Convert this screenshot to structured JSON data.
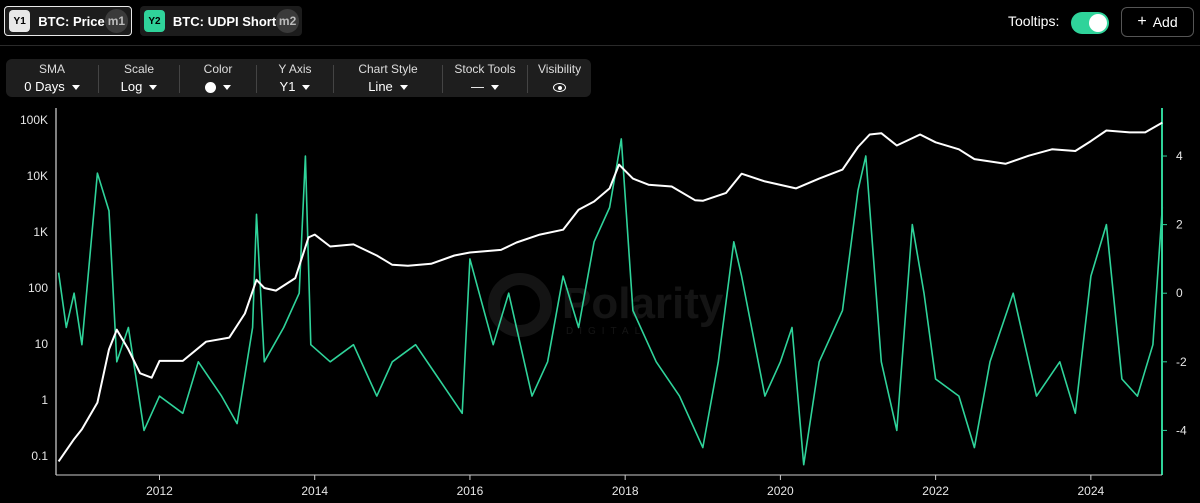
{
  "header": {
    "series": [
      {
        "badge": "Y1",
        "label": "BTC: Price",
        "tag": "m1"
      },
      {
        "badge": "Y2",
        "label": "BTC: UDPI Short",
        "tag": "m2"
      }
    ],
    "tooltips_label": "Tooltips:",
    "tooltips_enabled": true,
    "add_label": "Add"
  },
  "toolbar": {
    "sma": {
      "title": "SMA",
      "value": "0 Days"
    },
    "scale": {
      "title": "Scale",
      "value": "Log"
    },
    "color": {
      "title": "Color",
      "value": "#ffffff"
    },
    "y_axis": {
      "title": "Y Axis",
      "value": "Y1"
    },
    "chart_style": {
      "title": "Chart Style",
      "value": "Line"
    },
    "stock_tools": {
      "title": "Stock Tools",
      "value": "—"
    },
    "visibility": {
      "title": "Visibility",
      "icon": "eye-icon"
    }
  },
  "watermark": {
    "text": "Polarity",
    "sub": "DIGITAL"
  },
  "chart_data": {
    "type": "line",
    "x_ticks": [
      "2012",
      "2014",
      "2016",
      "2018",
      "2020",
      "2022",
      "2024"
    ],
    "xlim": [
      "2010-09",
      "2024-12"
    ],
    "y1": {
      "scale": "log",
      "ticks": [
        "0.1",
        "1",
        "10",
        "100",
        "1K",
        "10K",
        "100K"
      ],
      "ylim": [
        0.06,
        100000
      ]
    },
    "y2": {
      "scale": "linear",
      "ticks": [
        "-4",
        "-2",
        "0",
        "2",
        "4"
      ],
      "ylim": [
        -5.3,
        5.4
      ]
    },
    "series": [
      {
        "name": "BTC: Price",
        "axis": "y1",
        "color": "#ffffff",
        "x": [
          2010.7,
          2010.9,
          2011.0,
          2011.2,
          2011.35,
          2011.45,
          2011.6,
          2011.75,
          2011.9,
          2012.0,
          2012.3,
          2012.6,
          2012.9,
          2013.1,
          2013.25,
          2013.35,
          2013.5,
          2013.75,
          2013.92,
          2014.0,
          2014.2,
          2014.5,
          2014.8,
          2015.0,
          2015.2,
          2015.5,
          2015.8,
          2016.0,
          2016.4,
          2016.6,
          2016.9,
          2017.2,
          2017.4,
          2017.6,
          2017.8,
          2017.92,
          2018.1,
          2018.3,
          2018.6,
          2018.9,
          2019.0,
          2019.3,
          2019.5,
          2019.8,
          2020.2,
          2020.5,
          2020.8,
          2021.0,
          2021.15,
          2021.3,
          2021.5,
          2021.8,
          2022.0,
          2022.3,
          2022.5,
          2022.9,
          2023.2,
          2023.5,
          2023.8,
          2024.0,
          2024.2,
          2024.5,
          2024.7,
          2024.92
        ],
        "y": [
          0.08,
          0.2,
          0.3,
          0.9,
          8,
          18,
          8,
          3,
          2.5,
          5,
          5,
          11,
          13,
          35,
          140,
          100,
          90,
          150,
          800,
          900,
          550,
          600,
          380,
          260,
          250,
          270,
          380,
          430,
          480,
          650,
          900,
          1100,
          2500,
          3500,
          6000,
          16000,
          9000,
          7000,
          6500,
          3700,
          3600,
          5000,
          11000,
          8000,
          6000,
          9000,
          13000,
          33000,
          55000,
          58000,
          35000,
          55000,
          40000,
          30000,
          20000,
          16500,
          23000,
          30000,
          28000,
          42000,
          65000,
          60000,
          60000,
          90000
        ]
      },
      {
        "name": "BTC: UDPI Short",
        "axis": "y2",
        "color": "#2fd39a",
        "x": [
          2010.7,
          2010.8,
          2010.9,
          2011.0,
          2011.2,
          2011.35,
          2011.45,
          2011.6,
          2011.8,
          2012.0,
          2012.3,
          2012.5,
          2012.8,
          2013.0,
          2013.2,
          2013.25,
          2013.35,
          2013.6,
          2013.8,
          2013.88,
          2013.95,
          2014.2,
          2014.5,
          2014.8,
          2015.0,
          2015.3,
          2015.6,
          2015.9,
          2016.0,
          2016.3,
          2016.5,
          2016.8,
          2017.0,
          2017.2,
          2017.4,
          2017.6,
          2017.8,
          2017.95,
          2018.1,
          2018.4,
          2018.7,
          2019.0,
          2019.2,
          2019.4,
          2019.5,
          2019.8,
          2020.0,
          2020.15,
          2020.3,
          2020.5,
          2020.8,
          2021.0,
          2021.1,
          2021.3,
          2021.5,
          2021.7,
          2021.85,
          2022.0,
          2022.3,
          2022.5,
          2022.7,
          2023.0,
          2023.3,
          2023.6,
          2023.8,
          2024.0,
          2024.2,
          2024.4,
          2024.6,
          2024.8,
          2024.92
        ],
        "y": [
          0.6,
          -1.0,
          0,
          -1.5,
          3.5,
          2.4,
          -2.0,
          -1.0,
          -4.0,
          -3.0,
          -3.5,
          -2.0,
          -3.0,
          -3.8,
          -1.0,
          2.3,
          -2.0,
          -1.0,
          0,
          4.0,
          -1.5,
          -2.0,
          -1.5,
          -3.0,
          -2.0,
          -1.5,
          -2.5,
          -3.5,
          1.0,
          -1.5,
          0,
          -3.0,
          -2.0,
          0.5,
          -1.0,
          1.5,
          2.5,
          4.5,
          -0.5,
          -2.0,
          -3.0,
          -4.5,
          -2.0,
          1.5,
          0.5,
          -3.0,
          -2.0,
          -1.0,
          -5.0,
          -2.0,
          -0.5,
          3.0,
          4.0,
          -2.0,
          -4.0,
          2.0,
          0,
          -2.5,
          -3.0,
          -4.5,
          -2.0,
          0,
          -3.0,
          -2.0,
          -3.5,
          0.5,
          2.0,
          -2.5,
          -3.0,
          -1.5,
          2.5
        ]
      }
    ]
  }
}
